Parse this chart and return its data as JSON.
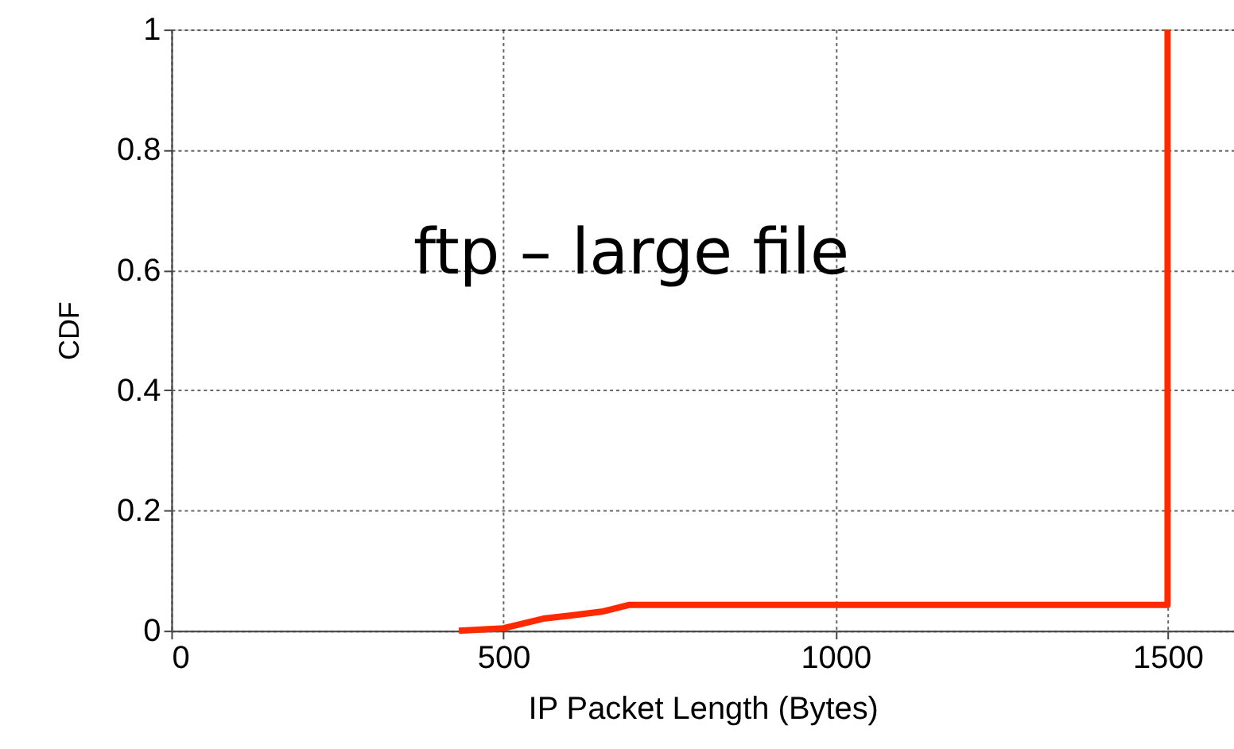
{
  "chart_data": {
    "type": "line",
    "xlabel": "IP Packet Length (Bytes)",
    "ylabel": "CDF",
    "annotations": [
      "ftp – large file"
    ],
    "series": [
      {
        "color": "#ff2a00",
        "x": [
          433,
          500,
          530,
          560,
          600,
          650,
          690,
          1500,
          1500
        ],
        "values": [
          0,
          0.004,
          0.012,
          0.02,
          0.025,
          0.032,
          0.043,
          0.043,
          1
        ]
      }
    ],
    "xlim": [
      0,
      1600
    ],
    "xticks": [
      0,
      500,
      1000,
      1500
    ],
    "ylim": [
      0,
      1
    ],
    "yticks": [
      0,
      0.2,
      0.4,
      0.6,
      0.8,
      1
    ],
    "grid": true,
    "marker": "none",
    "line_style": "solid"
  }
}
